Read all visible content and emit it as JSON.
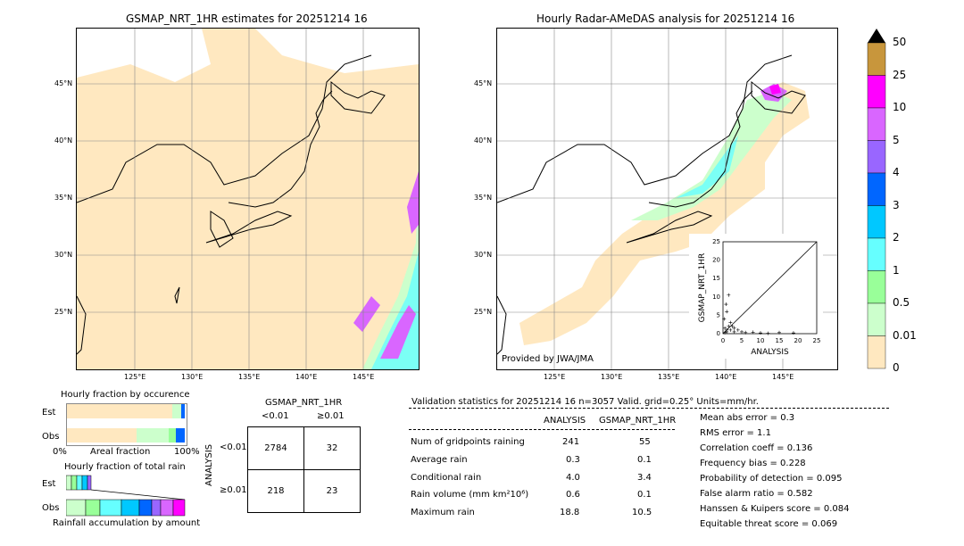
{
  "left_map": {
    "title": "GSMAP_NRT_1HR estimates for 20251214 16",
    "lat_ticks": [
      "45°N",
      "40°N",
      "35°N",
      "30°N",
      "25°N"
    ],
    "lon_ticks": [
      "125°E",
      "130°E",
      "135°E",
      "140°E",
      "145°E"
    ]
  },
  "right_map": {
    "title": "Hourly Radar-AMeDAS analysis for 20251214 16",
    "lat_ticks": [
      "45°N",
      "40°N",
      "35°N",
      "30°N",
      "25°N"
    ],
    "lon_ticks": [
      "125°E",
      "130°E",
      "135°E",
      "140°E",
      "145°E"
    ],
    "credit": "Provided by JWA/JMA"
  },
  "colorbar": {
    "labels": [
      "50",
      "25",
      "10",
      "5",
      "4",
      "3",
      "2",
      "1",
      "0.5",
      "0.01",
      "0"
    ],
    "colors": [
      "#c8963c",
      "#ff00ff",
      "#d966ff",
      "#9966ff",
      "#0066ff",
      "#00c8ff",
      "#66ffff",
      "#99ff99",
      "#ccffcc",
      "#ffe8c0"
    ]
  },
  "fraction_occurrence": {
    "title": "Hourly fraction by occurence",
    "row_est": "Est",
    "row_obs": "Obs",
    "x0": "0%",
    "xmid": "Areal fraction",
    "x1": "100%"
  },
  "fraction_total": {
    "title": "Hourly fraction of total rain",
    "row_est": "Est",
    "row_obs": "Obs",
    "xlabel": "Rainfall accumulation by amount"
  },
  "contingency": {
    "title": "GSMAP_NRT_1HR",
    "col1": "<0.01",
    "col2": "≥0.01",
    "ylabel": "ANALYSIS",
    "row1": "<0.01",
    "row2": "≥0.01",
    "cells": [
      [
        "2784",
        "32"
      ],
      [
        "218",
        "23"
      ]
    ]
  },
  "validation": {
    "header": "Validation statistics for 20251214 16  n=3057 Valid. grid=0.25° Units=mm/hr.",
    "col_analysis": "ANALYSIS",
    "col_gsmap": "GSMAP_NRT_1HR",
    "rows": [
      {
        "label": "Num of gridpoints raining",
        "analysis": "241",
        "gsmap": "55"
      },
      {
        "label": "Average rain",
        "analysis": "0.3",
        "gsmap": "0.1"
      },
      {
        "label": "Conditional rain",
        "analysis": "4.0",
        "gsmap": "3.4"
      },
      {
        "label": "Rain volume (mm km²10⁶)",
        "analysis": "0.6",
        "gsmap": "0.1"
      },
      {
        "label": "Maximum rain",
        "analysis": "18.8",
        "gsmap": "10.5"
      }
    ],
    "scores": [
      "Mean abs error =    0.3",
      "RMS error =    1.1",
      "Correlation coeff =  0.136",
      "Frequency bias =  0.228",
      "Probability of detection =  0.095",
      "False alarm ratio =  0.582",
      "Hanssen & Kuipers score =  0.084",
      "Equitable threat score =  0.069"
    ]
  },
  "chart_data": {
    "type": "scatter",
    "title": "",
    "xlabel": "ANALYSIS",
    "ylabel": "GSMAP_NRT_1HR",
    "xlim": [
      0,
      25
    ],
    "ylim": [
      0,
      25
    ],
    "ticks": [
      "0",
      "5",
      "10",
      "15",
      "20",
      "25"
    ],
    "points": [
      [
        0.5,
        0.3
      ],
      [
        1,
        0.5
      ],
      [
        1.5,
        2
      ],
      [
        2,
        1
      ],
      [
        0.3,
        4
      ],
      [
        1,
        6
      ],
      [
        0.8,
        8
      ],
      [
        1.5,
        10.5
      ],
      [
        2.5,
        2
      ],
      [
        3,
        1.5
      ],
      [
        4,
        1
      ],
      [
        5,
        0.5
      ],
      [
        6,
        0.3
      ],
      [
        8,
        0.4
      ],
      [
        10,
        0.2
      ],
      [
        12,
        0.1
      ],
      [
        15,
        0.3
      ],
      [
        18.8,
        0.2
      ],
      [
        2,
        3
      ],
      [
        3,
        0.5
      ],
      [
        1,
        1
      ],
      [
        0.5,
        1.5
      ]
    ]
  }
}
